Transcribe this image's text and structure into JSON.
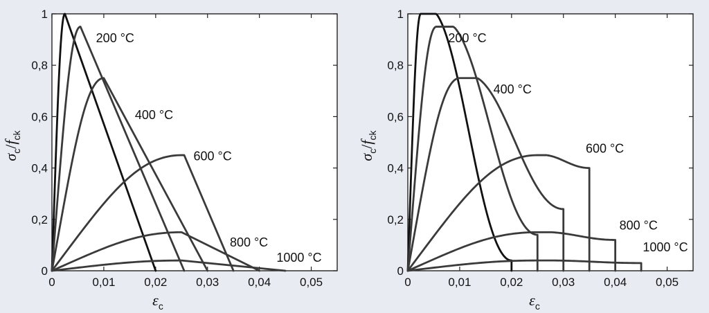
{
  "chart_data": [
    {
      "type": "line",
      "xlabel": {
        "main": "ε",
        "sub": "c"
      },
      "ylabel": {
        "main_1": "σ",
        "sub_1": "c",
        "slash": "/",
        "main_2": "f",
        "sub_2": "ck"
      },
      "xlim": [
        0,
        0.055
      ],
      "ylim": [
        0,
        1
      ],
      "x_ticks": [
        {
          "value": 0,
          "label": "0"
        },
        {
          "value": 0.01,
          "label": "0,01"
        },
        {
          "value": 0.02,
          "label": "0,02"
        },
        {
          "value": 0.03,
          "label": "0,03"
        },
        {
          "value": 0.04,
          "label": "0,04"
        },
        {
          "value": 0.05,
          "label": "0,05"
        }
      ],
      "y_ticks": [
        {
          "value": 0,
          "label": "0"
        },
        {
          "value": 0.2,
          "label": "0,2"
        },
        {
          "value": 0.4,
          "label": "0,4"
        },
        {
          "value": 0.6,
          "label": "0,6"
        },
        {
          "value": 0.8,
          "label": "0,8"
        },
        {
          "value": 1,
          "label": "1"
        }
      ],
      "curve_labels": [
        {
          "text": "200 °C",
          "x": 0.0085,
          "y": 0.89
        },
        {
          "text": "400 °C",
          "x": 0.016,
          "y": 0.59
        },
        {
          "text": "600 °C",
          "x": 0.0273,
          "y": 0.43
        },
        {
          "text": "800 °C",
          "x": 0.0343,
          "y": 0.095
        },
        {
          "text": "1000 °C",
          "x": 0.0433,
          "y": 0.035
        }
      ],
      "series": [
        {
          "dark": true,
          "peak_x": 0.0025,
          "peak_y": 1.0,
          "end_x": 0.02,
          "shape": "linear"
        },
        {
          "dark": false,
          "peak_x": 0.0055,
          "peak_y": 0.95,
          "end_x": 0.0255,
          "shape": "linear"
        },
        {
          "dark": false,
          "peak_x": 0.01,
          "peak_y": 0.75,
          "end_x": 0.03,
          "shape": "linear"
        },
        {
          "dark": false,
          "peak_x": 0.025,
          "peak_y": 0.45,
          "end_x": 0.035,
          "shape": "linear",
          "plateau_x": 0.0255
        },
        {
          "dark": false,
          "peak_x": 0.025,
          "peak_y": 0.15,
          "end_x": 0.04,
          "shape": "linear"
        },
        {
          "dark": false,
          "peak_x": 0.025,
          "peak_y": 0.04,
          "end_x": 0.045,
          "shape": "linear"
        }
      ]
    },
    {
      "type": "line",
      "xlabel": {
        "main": "ε",
        "sub": "c"
      },
      "ylabel": {
        "main_1": "σ",
        "sub_1": "c",
        "slash": "/",
        "main_2": "f",
        "sub_2": "ck"
      },
      "xlim": [
        0,
        0.055
      ],
      "ylim": [
        0,
        1
      ],
      "x_ticks": [
        {
          "value": 0,
          "label": "0"
        },
        {
          "value": 0.01,
          "label": "0,01"
        },
        {
          "value": 0.02,
          "label": "0,02"
        },
        {
          "value": 0.03,
          "label": "0,03"
        },
        {
          "value": 0.04,
          "label": "0,04"
        },
        {
          "value": 0.05,
          "label": "0,05"
        }
      ],
      "y_ticks": [
        {
          "value": 0,
          "label": "0"
        },
        {
          "value": 0.2,
          "label": "0,2"
        },
        {
          "value": 0.4,
          "label": "0,4"
        },
        {
          "value": 0.6,
          "label": "0,6"
        },
        {
          "value": 0.8,
          "label": "0,8"
        },
        {
          "value": 1,
          "label": "1"
        }
      ],
      "curve_labels": [
        {
          "text": "200 °C",
          "x": 0.0078,
          "y": 0.89
        },
        {
          "text": "400 °C",
          "x": 0.0165,
          "y": 0.69
        },
        {
          "text": "600 °C",
          "x": 0.0343,
          "y": 0.46
        },
        {
          "text": "800 °C",
          "x": 0.0408,
          "y": 0.16
        },
        {
          "text": "1000 °C",
          "x": 0.0453,
          "y": 0.075
        }
      ],
      "series": [
        {
          "dark": true,
          "peak_x": 0.0025,
          "peak_y": 1.0,
          "end_x": 0.02,
          "shape": "curved",
          "end_y": 0.04
        },
        {
          "dark": false,
          "peak_x": 0.0055,
          "peak_y": 0.95,
          "end_x": 0.025,
          "shape": "curved",
          "end_y": 0.14
        },
        {
          "dark": false,
          "peak_x": 0.01,
          "peak_y": 0.75,
          "end_x": 0.03,
          "shape": "curved",
          "end_y": 0.24
        },
        {
          "dark": false,
          "peak_x": 0.025,
          "peak_y": 0.45,
          "end_x": 0.035,
          "shape": "curved",
          "end_y": 0.4
        },
        {
          "dark": false,
          "peak_x": 0.025,
          "peak_y": 0.15,
          "end_x": 0.04,
          "shape": "curved",
          "end_y": 0.12
        },
        {
          "dark": false,
          "peak_x": 0.025,
          "peak_y": 0.04,
          "end_x": 0.045,
          "shape": "curved",
          "end_y": 0.03
        }
      ]
    }
  ]
}
